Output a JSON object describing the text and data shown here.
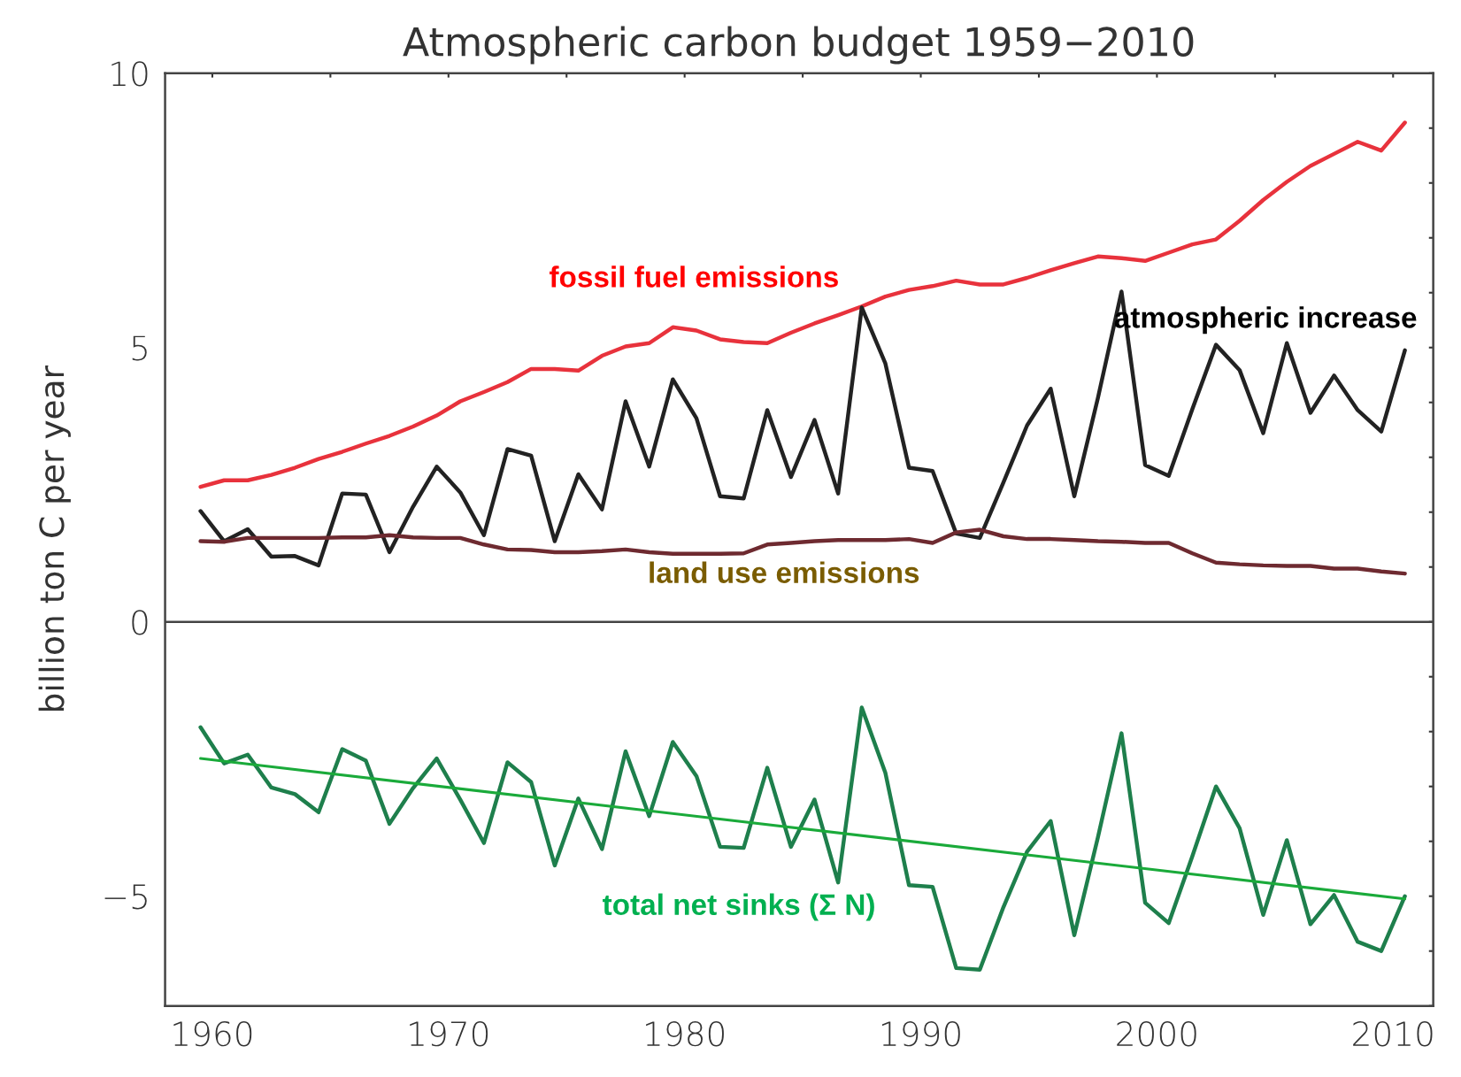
{
  "chart_data": {
    "type": "line",
    "title": "Atmospheric carbon budget 1959−2010",
    "ylabel": "billion ton C per year",
    "x": [
      1959.5,
      1960.5,
      1961.5,
      1962.5,
      1963.5,
      1964.5,
      1965.5,
      1966.5,
      1967.5,
      1968.5,
      1969.5,
      1970.5,
      1971.5,
      1972.5,
      1973.5,
      1974.5,
      1975.5,
      1976.5,
      1977.5,
      1978.5,
      1979.5,
      1980.5,
      1981.5,
      1982.5,
      1983.5,
      1984.5,
      1985.5,
      1986.5,
      1987.5,
      1988.5,
      1989.5,
      1990.5,
      1991.5,
      1992.5,
      1993.5,
      1994.5,
      1995.5,
      1996.5,
      1997.5,
      1998.5,
      1999.5,
      2000.5,
      2001.5,
      2002.5,
      2003.5,
      2004.5,
      2005.5,
      2006.5,
      2007.5,
      2008.5,
      2009.5,
      2010.5
    ],
    "series": [
      {
        "name": "fossil fuel emissions",
        "color": "#e8323c",
        "values": [
          2.46,
          2.58,
          2.58,
          2.68,
          2.81,
          2.97,
          3.1,
          3.25,
          3.39,
          3.56,
          3.76,
          4.02,
          4.19,
          4.37,
          4.61,
          4.61,
          4.58,
          4.85,
          5.02,
          5.08,
          5.37,
          5.31,
          5.15,
          5.1,
          5.08,
          5.27,
          5.44,
          5.59,
          5.75,
          5.93,
          6.05,
          6.12,
          6.22,
          6.15,
          6.15,
          6.27,
          6.41,
          6.54,
          6.66,
          6.63,
          6.58,
          6.73,
          6.88,
          6.97,
          7.31,
          7.69,
          8.02,
          8.31,
          8.53,
          8.75,
          8.59,
          9.1
        ]
      },
      {
        "name": "atmospheric increase",
        "color": "#222222",
        "values": [
          2.02,
          1.47,
          1.69,
          1.19,
          1.2,
          1.03,
          2.34,
          2.32,
          1.27,
          2.1,
          2.83,
          2.36,
          1.58,
          3.15,
          3.03,
          1.47,
          2.69,
          2.05,
          4.02,
          2.83,
          4.42,
          3.71,
          2.29,
          2.25,
          3.86,
          2.64,
          3.68,
          2.34,
          5.73,
          4.71,
          2.81,
          2.75,
          1.61,
          1.53,
          2.54,
          3.58,
          4.25,
          2.29,
          4.08,
          6.02,
          2.86,
          2.66,
          3.88,
          5.05,
          4.59,
          3.44,
          5.08,
          3.81,
          4.49,
          3.86,
          3.47,
          4.95
        ]
      },
      {
        "name": "land use emissions",
        "color": "#6e2a30",
        "values": [
          1.47,
          1.46,
          1.53,
          1.53,
          1.53,
          1.53,
          1.54,
          1.54,
          1.58,
          1.54,
          1.53,
          1.53,
          1.41,
          1.32,
          1.31,
          1.27,
          1.27,
          1.29,
          1.32,
          1.27,
          1.24,
          1.24,
          1.24,
          1.25,
          1.41,
          1.44,
          1.47,
          1.49,
          1.49,
          1.49,
          1.51,
          1.44,
          1.63,
          1.68,
          1.56,
          1.51,
          1.51,
          1.49,
          1.47,
          1.46,
          1.44,
          1.44,
          1.25,
          1.08,
          1.05,
          1.03,
          1.02,
          1.02,
          0.97,
          0.97,
          0.92,
          0.88
        ]
      },
      {
        "name": "total net sinks (Σ N)",
        "color": "#1e7f4c",
        "values": [
          -1.92,
          -2.58,
          -2.42,
          -3.02,
          -3.14,
          -3.47,
          -2.32,
          -2.53,
          -3.68,
          -3.03,
          -2.49,
          -3.24,
          -4.03,
          -2.56,
          -2.92,
          -4.44,
          -3.22,
          -4.14,
          -2.36,
          -3.54,
          -2.19,
          -2.81,
          -4.1,
          -4.12,
          -2.66,
          -4.1,
          -3.24,
          -4.75,
          -1.56,
          -2.75,
          -4.8,
          -4.83,
          -6.31,
          -6.34,
          -5.2,
          -4.19,
          -3.63,
          -5.71,
          -3.93,
          -2.03,
          -5.12,
          -5.49,
          -4.27,
          -3.0,
          -3.76,
          -5.34,
          -3.98,
          -5.51,
          -4.98,
          -5.83,
          -6.0,
          -5.0
        ]
      },
      {
        "type": "line",
        "color": "#1aaa3a",
        "x": [
          1959.5,
          2010.5
        ],
        "values": [
          -2.49,
          -5.05
        ]
      }
    ],
    "ref_lines": [
      {
        "axis": "y",
        "value": 0,
        "color": "#444444"
      }
    ],
    "xlim": [
      1958,
      2011.7
    ],
    "ylim": [
      -7,
      10
    ],
    "xticks": [
      1960,
      {
        "value": 1965,
        "label": null
      },
      1970,
      {
        "value": 1975,
        "label": null
      },
      1980,
      {
        "value": 1985,
        "label": null
      },
      1990,
      {
        "value": 1995,
        "label": null
      },
      2000,
      {
        "value": 2005,
        "label": null
      },
      2010
    ],
    "yticks": [
      {
        "value": -7,
        "label": null
      },
      {
        "value": -6,
        "label": null
      },
      -5,
      {
        "value": -4,
        "label": null
      },
      {
        "value": -3,
        "label": null
      },
      {
        "value": -2,
        "label": null
      },
      {
        "value": -1,
        "label": null
      },
      0,
      {
        "value": 1,
        "label": null
      },
      {
        "value": 2,
        "label": null
      },
      {
        "value": 3,
        "label": null
      },
      {
        "value": 4,
        "label": null
      },
      5,
      {
        "value": 6,
        "label": null
      },
      {
        "value": 7,
        "label": null
      },
      {
        "value": 8,
        "label": null
      },
      {
        "value": 9,
        "label": null
      },
      10
    ],
    "grid": false,
    "legend": false,
    "marker": "none",
    "line_style": "solid"
  }
}
